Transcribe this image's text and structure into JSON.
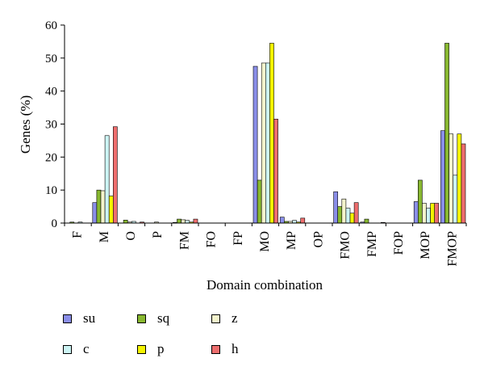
{
  "chart_data": {
    "type": "bar",
    "xlabel": "Domain combination",
    "ylabel": "Genes (%)",
    "ylim": [
      0,
      60
    ],
    "yticks": [
      0,
      10,
      20,
      30,
      40,
      50,
      60
    ],
    "grid": false,
    "legend_position": "bottom-left",
    "categories": [
      "F",
      "M",
      "O",
      "P",
      "FM",
      "FO",
      "FP",
      "MO",
      "MP",
      "OP",
      "FMO",
      "FMP",
      "FOP",
      "MOP",
      "FMOP"
    ],
    "series": [
      {
        "name": "su",
        "color": "#8a8ee8",
        "values": [
          0,
          6.2,
          0,
          0,
          0.2,
          0,
          0,
          47.5,
          1.8,
          0,
          9.5,
          0.3,
          0,
          6.5,
          28
        ]
      },
      {
        "name": "sq",
        "color": "#88b830",
        "values": [
          0.3,
          10,
          0.9,
          0,
          1.2,
          0,
          0,
          13,
          0.5,
          0,
          5,
          1.2,
          0,
          13,
          54.5
        ]
      },
      {
        "name": "z",
        "color": "#f4f4cc",
        "values": [
          0,
          9.8,
          0.3,
          0.3,
          1,
          0,
          0,
          48.5,
          0.5,
          0,
          7.3,
          0,
          0,
          6,
          27
        ]
      },
      {
        "name": "c",
        "color": "#ccf4f4",
        "values": [
          0.3,
          26.5,
          0.5,
          0,
          0.8,
          0,
          0,
          48.5,
          0.8,
          0,
          4.5,
          0,
          0,
          4.5,
          14.5
        ]
      },
      {
        "name": "p",
        "color": "#f4f400",
        "values": [
          0,
          8.2,
          0,
          0,
          0.3,
          0,
          0,
          54.5,
          0.3,
          0,
          3,
          0,
          0,
          6,
          27
        ]
      },
      {
        "name": "h",
        "color": "#ee6e6e",
        "values": [
          0,
          29.2,
          0.3,
          0,
          1.2,
          0,
          0,
          31.5,
          1.5,
          0,
          6.2,
          0.2,
          0,
          6,
          24
        ]
      }
    ]
  }
}
